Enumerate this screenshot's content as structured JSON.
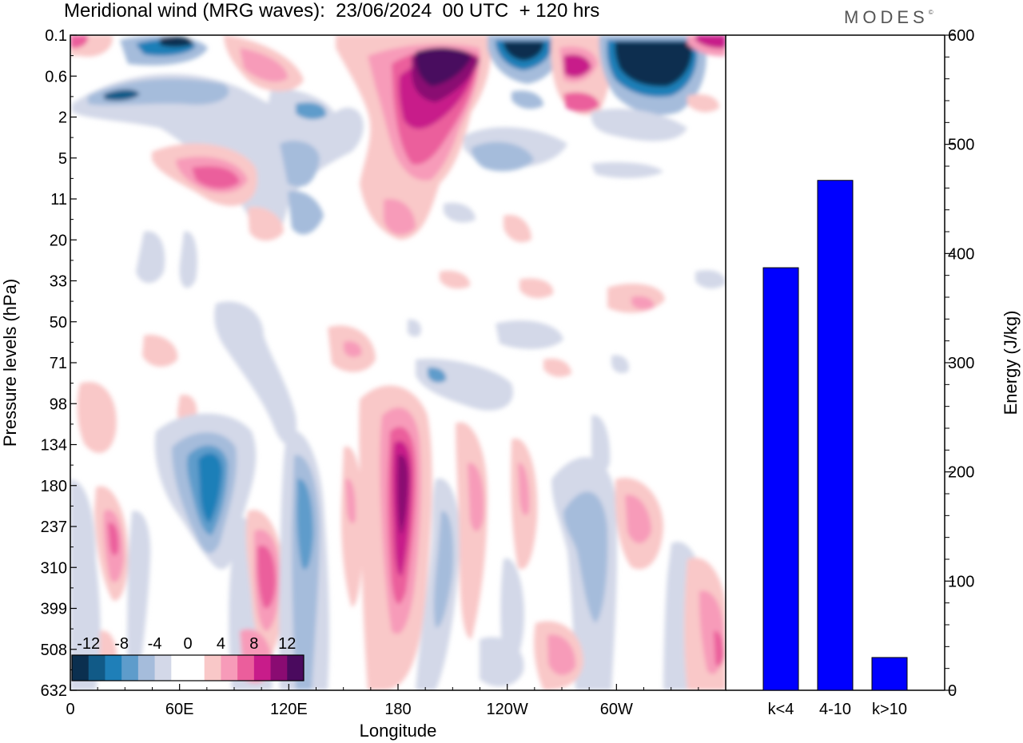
{
  "title": "Meridional wind (MRG waves):  23/06/2024  00 UTC  + 120 hrs",
  "brand": "MODES",
  "brand_mark": "©",
  "chart_data": [
    {
      "type": "heatmap",
      "xlabel": "Longitude",
      "ylabel": "Pressure levels (hPa)",
      "x_ticks": [
        "0",
        "60E",
        "120E",
        "180",
        "120W",
        "60W"
      ],
      "x_range": [
        0,
        360
      ],
      "y_ticks": [
        "0.1",
        "0.6",
        "2",
        "5",
        "11",
        "20",
        "33",
        "50",
        "71",
        "98",
        "134",
        "180",
        "237",
        "310",
        "399",
        "508",
        "632"
      ],
      "colorbar": {
        "labels": [
          "-12",
          "-8",
          "-4",
          "0",
          "4",
          "8",
          "12"
        ],
        "colors": [
          "#0b2f4f",
          "#115a87",
          "#1f7fb8",
          "#5e9ccb",
          "#a5bcdb",
          "#d3d8e8",
          "#ffffff",
          "#ffffff",
          "#f9c8c8",
          "#f79bb9",
          "#eb5e9c",
          "#c81c8a",
          "#8a0b72",
          "#4a0a5e"
        ]
      }
    },
    {
      "type": "bar",
      "ylabel": "Energy (J/kg)",
      "categories": [
        "k<4",
        "4-10",
        "k>10"
      ],
      "values": [
        387,
        467,
        30
      ],
      "ylim": [
        0,
        600
      ],
      "y_ticks": [
        "0",
        "100",
        "200",
        "300",
        "400",
        "500",
        "600"
      ],
      "bar_color": "#0000ff"
    }
  ]
}
